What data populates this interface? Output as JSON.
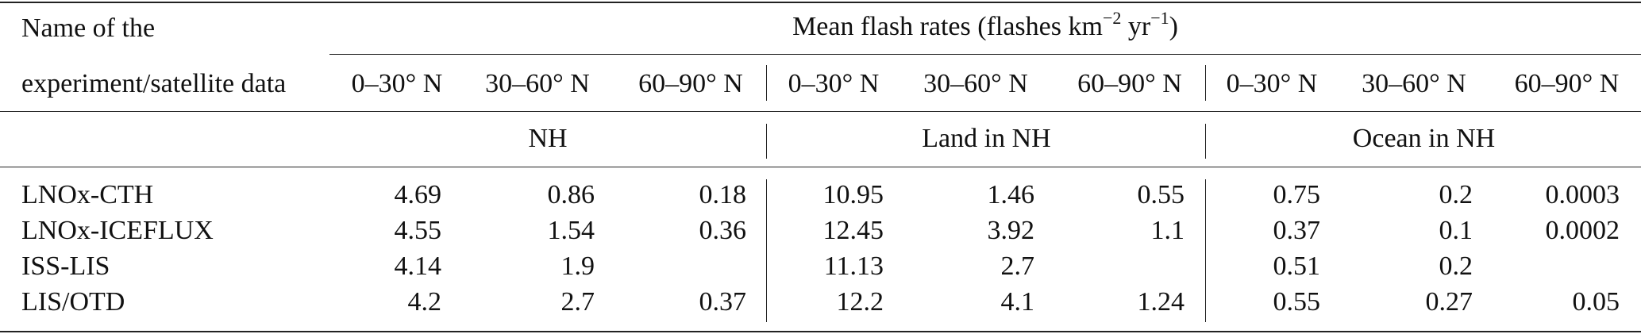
{
  "header": {
    "name_line1": "Name of the",
    "name_line2": "experiment/satellite data",
    "flash_rates_label": "Mean flash rates (flashes km",
    "flash_rates_exp1": "−2",
    "flash_rates_mid": " yr",
    "flash_rates_exp2": "−1",
    "flash_rates_end": ")",
    "lat_bands": [
      "0–30° N",
      "30–60° N",
      "60–90° N"
    ],
    "groups": [
      "NH",
      "Land in NH",
      "Ocean in NH"
    ]
  },
  "rows": [
    {
      "name": "LNOx-CTH",
      "values": [
        "4.69",
        "0.86",
        "0.18",
        "10.95",
        "1.46",
        "0.55",
        "0.75",
        "0.2",
        "0.0003"
      ]
    },
    {
      "name": "LNOx-ICEFLUX",
      "values": [
        "4.55",
        "1.54",
        "0.36",
        "12.45",
        "3.92",
        "1.1",
        "0.37",
        "0.1",
        "0.0002"
      ]
    },
    {
      "name": "ISS-LIS",
      "values": [
        "4.14",
        "1.9",
        "",
        "11.13",
        "2.7",
        "",
        "0.51",
        "0.2",
        ""
      ]
    },
    {
      "name": "LIS/OTD",
      "values": [
        "4.2",
        "2.7",
        "0.37",
        "12.2",
        "4.1",
        "1.24",
        "0.55",
        "0.27",
        "0.05"
      ]
    }
  ]
}
